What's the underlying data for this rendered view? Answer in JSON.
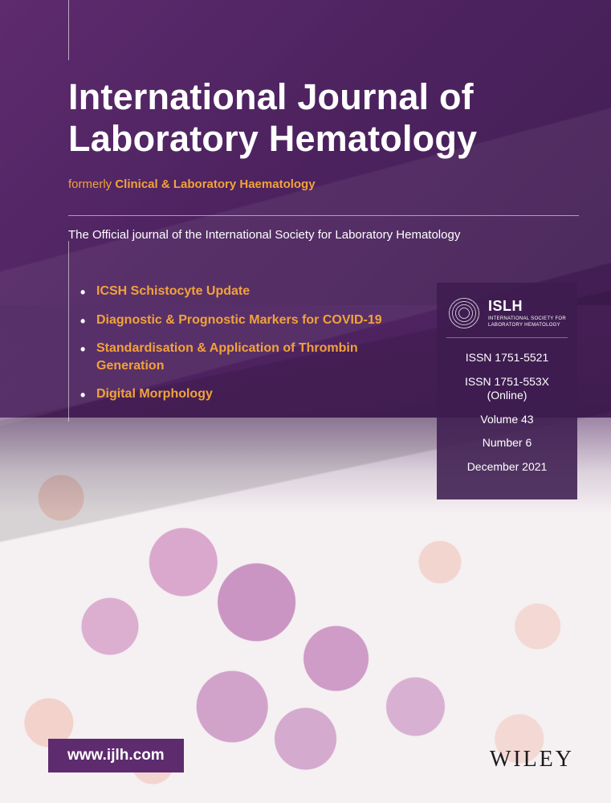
{
  "colors": {
    "purple_dark": "#3e1c50",
    "purple_mid": "#4e2360",
    "purple_light": "#5e2b6e",
    "accent_orange": "#f2a23a",
    "white": "#ffffff",
    "cell_purple": "rgba(180,100,170,0.6)",
    "cell_pink": "rgba(240,180,165,0.5)",
    "background": "#f5f0f2"
  },
  "title": {
    "line1": "International Journal of",
    "line2": "Laboratory Hematology"
  },
  "formerly": {
    "label": "formerly",
    "name": "Clinical & Laboratory Haematology"
  },
  "official_line": "The Official journal of the International Society for Laboratory Hematology",
  "highlights": [
    "ICSH Schistocyte Update",
    "Diagnostic & Prognostic Markers for COVID-19",
    "Standardisation & Application of Thrombin Generation",
    "Digital Morphology"
  ],
  "society": {
    "acronym": "ISLH",
    "full_line1": "INTERNATIONAL SOCIETY FOR",
    "full_line2": "LABORATORY HEMATOLOGY"
  },
  "issue": {
    "issn_print": "ISSN 1751-5521",
    "issn_online_a": "ISSN 1751-553X",
    "issn_online_b": "(Online)",
    "volume": "Volume 43",
    "number": "Number 6",
    "date": "December 2021"
  },
  "website": "www.ijlh.com",
  "publisher": "WILEY"
}
